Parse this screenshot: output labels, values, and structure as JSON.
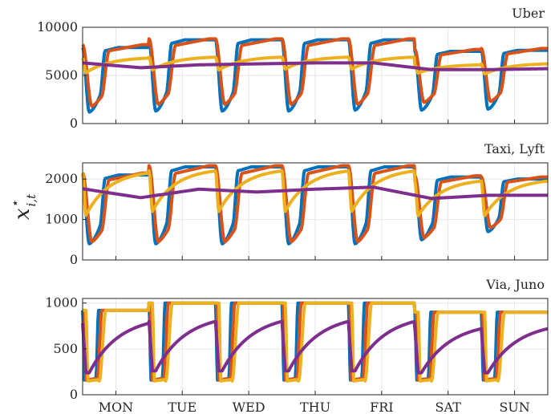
{
  "chart_data": {
    "type": "line",
    "ylabel": "x*_{i,t}",
    "ylabel_parts": {
      "base": "x",
      "sup": "⋆",
      "sub": "i,t"
    },
    "x_categories": [
      "MON",
      "TUE",
      "WED",
      "THU",
      "FRI",
      "SAT",
      "SUN"
    ],
    "xlim_days": [
      0,
      7
    ],
    "grid": true,
    "series_colors": [
      "#0072BD",
      "#D95319",
      "#EDB120",
      "#7E2F8E"
    ],
    "panels": [
      {
        "title": "Uber",
        "ylim": [
          0,
          10000
        ],
        "yticks": [
          0,
          5000,
          10000
        ],
        "ytick_labels": [
          "0",
          "5000",
          "10000"
        ],
        "daily_peak": {
          "series_0": [
            7900,
            8700,
            8700,
            8700,
            8700,
            7500,
            7600
          ],
          "series_1": [
            8200,
            8800,
            8800,
            8800,
            8800,
            7700,
            7800
          ],
          "series_2": [
            6800,
            6900,
            6900,
            6900,
            6900,
            6100,
            6200
          ]
        },
        "daily_trough": {
          "series_0": [
            1200,
            1300,
            1300,
            1300,
            1400,
            1400,
            1500
          ],
          "series_1": [
            1800,
            2000,
            2000,
            2000,
            2000,
            2200,
            2300
          ],
          "series_2": [
            5200,
            5500,
            5500,
            5600,
            5600,
            5200,
            5100
          ]
        },
        "series_3_levels": [
          6300,
          5800,
          6100,
          6200,
          6300,
          6300,
          5600,
          5600,
          5700
        ]
      },
      {
        "title": "Taxi, Lyft",
        "ylim": [
          0,
          2400
        ],
        "yticks": [
          0,
          1000,
          2000
        ],
        "ytick_labels": [
          "0",
          "1000",
          "2000"
        ],
        "daily_peak": {
          "series_0": [
            2100,
            2300,
            2300,
            2300,
            2300,
            2050,
            2000
          ],
          "series_1": [
            2150,
            2330,
            2330,
            2330,
            2330,
            2080,
            2050
          ],
          "series_2": [
            2150,
            2200,
            2200,
            2200,
            2200,
            1950,
            1950
          ]
        },
        "daily_trough": {
          "series_0": [
            400,
            400,
            400,
            400,
            400,
            500,
            700
          ],
          "series_1": [
            450,
            450,
            450,
            450,
            450,
            550,
            800
          ],
          "series_2": [
            1050,
            1150,
            1150,
            1150,
            1150,
            1050,
            1050
          ]
        },
        "series_3_levels": [
          1760,
          1540,
          1750,
          1680,
          1750,
          1800,
          1520,
          1600,
          1600
        ]
      },
      {
        "title": "Via, Juno",
        "ylim": [
          0,
          1050
        ],
        "yticks": [
          0,
          500,
          1000
        ],
        "ytick_labels": [
          "0",
          "500",
          "1000"
        ],
        "daily_peak": {
          "series_0": [
            920,
            1000,
            1000,
            1000,
            1000,
            900,
            900
          ],
          "series_1": [
            920,
            1000,
            1000,
            1000,
            1000,
            900,
            900
          ],
          "series_2": [
            920,
            1000,
            1000,
            1000,
            1000,
            900,
            900
          ]
        },
        "daily_trough": {
          "series_0": [
            160,
            160,
            160,
            160,
            160,
            160,
            160
          ],
          "series_1": [
            160,
            160,
            160,
            160,
            160,
            160,
            160
          ],
          "series_2": [
            150,
            150,
            150,
            150,
            150,
            150,
            150
          ]
        },
        "series_3_peak": [
          780,
          800,
          800,
          800,
          800,
          720,
          720
        ],
        "series_3_trough": [
          240,
          260,
          260,
          260,
          260,
          240,
          240
        ]
      }
    ]
  }
}
